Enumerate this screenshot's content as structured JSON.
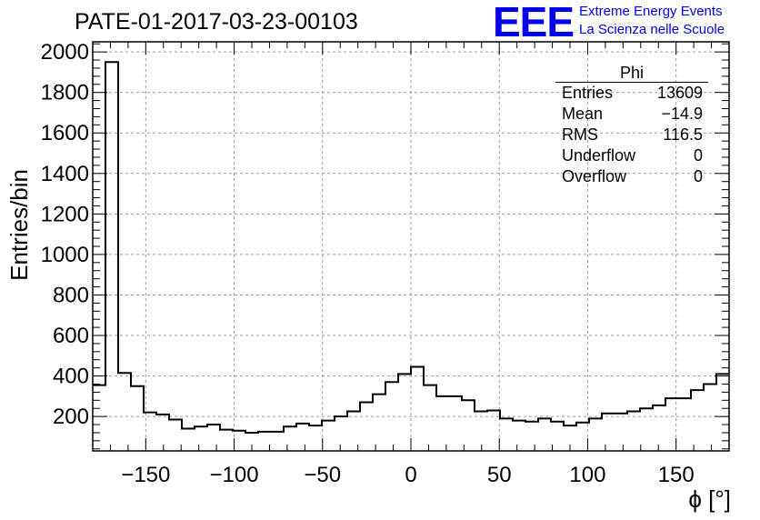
{
  "chart_data": {
    "type": "bar",
    "title": "PATE-01-2017-03-23-00103",
    "xlabel": "ϕ [°]",
    "ylabel": "Entries/bin",
    "xlim": [
      -180,
      180
    ],
    "ylim": [
      30,
      2050
    ],
    "bin_width": 7.2,
    "x_ticks": [
      -150,
      -100,
      -50,
      0,
      50,
      100,
      150
    ],
    "x_tick_labels": [
      "−150",
      "−100",
      "−50",
      "0",
      "50",
      "100",
      "150"
    ],
    "y_ticks": [
      200,
      400,
      600,
      800,
      1000,
      1200,
      1400,
      1600,
      1800,
      2000
    ],
    "y_tick_labels": [
      "200",
      "400",
      "600",
      "800",
      "1000",
      "1200",
      "1400",
      "1600",
      "1800",
      "2000"
    ],
    "grid": true,
    "values": [
      355,
      1950,
      415,
      350,
      220,
      210,
      185,
      140,
      150,
      160,
      135,
      130,
      120,
      125,
      125,
      150,
      165,
      155,
      180,
      200,
      225,
      270,
      310,
      370,
      410,
      445,
      355,
      300,
      300,
      280,
      225,
      230,
      190,
      180,
      175,
      190,
      175,
      155,
      170,
      190,
      215,
      215,
      225,
      240,
      255,
      290,
      290,
      330,
      360,
      410
    ],
    "stats_box": {
      "title": "Phi",
      "rows": [
        {
          "label": "Entries",
          "value": "13609"
        },
        {
          "label": "Mean",
          "value": "−14.9"
        },
        {
          "label": "RMS",
          "value": "116.5"
        },
        {
          "label": "Underflow",
          "value": "0"
        },
        {
          "label": "Overflow",
          "value": "0"
        }
      ]
    }
  },
  "logo": {
    "mark": "EEE",
    "line1": "Extreme Energy Events",
    "line2": "La Scienza nelle Scuole"
  }
}
